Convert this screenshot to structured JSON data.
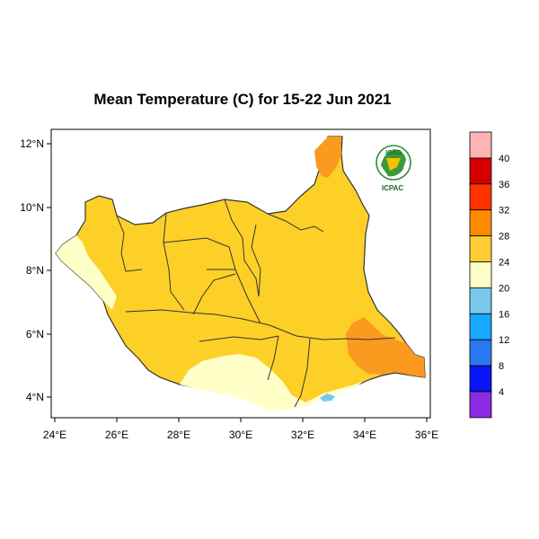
{
  "title": "Mean Temperature (C) for 15-22 Jun 2021",
  "logo": {
    "top_text": "IGAD",
    "bottom_text": "ICPAC",
    "icon": "africa-map-wreath-icon"
  },
  "axes": {
    "x_ticks": [
      "24°E",
      "26°E",
      "28°E",
      "30°E",
      "32°E",
      "34°E",
      "36°E"
    ],
    "y_ticks": [
      "12°N",
      "10°N",
      "8°N",
      "6°N",
      "4°N"
    ]
  },
  "colorbar": {
    "labels": [
      "40",
      "36",
      "32",
      "28",
      "24",
      "20",
      "16",
      "12",
      "8",
      "4"
    ],
    "colors": [
      "#ffb3b3",
      "#d40000",
      "#ff3300",
      "#ff8c00",
      "#ffcc33",
      "#ffffc8",
      "#78c8ee",
      "#19a8ff",
      "#2a78f0",
      "#0a16f5",
      "#8a2be2"
    ]
  },
  "colors": {
    "warm_fill": "#fdd028",
    "hot_fill": "#fa9a1e",
    "cool_fill": "#ffffc8",
    "cold_fill": "#78c8ee"
  }
}
